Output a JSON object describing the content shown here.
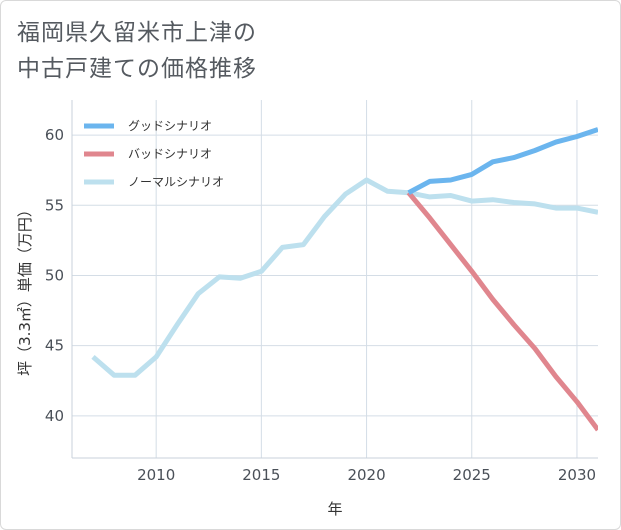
{
  "title_lines": [
    "福岡県久留米市上津の",
    "中古戸建ての価格推移"
  ],
  "chart_data": {
    "type": "line",
    "xlabel": "年",
    "ylabel": "坪（3.3㎡）単価（万円）",
    "xlim": [
      2006,
      2031
    ],
    "ylim": [
      37,
      62.5
    ],
    "xticks": [
      2010,
      2015,
      2020,
      2025,
      2030
    ],
    "yticks": [
      40,
      45,
      50,
      55,
      60
    ],
    "grid": true,
    "legend_position": "top-left",
    "series": [
      {
        "name": "グッドシナリオ",
        "color": "#6bb5ee",
        "x": [
          2022,
          2023,
          2024,
          2025,
          2026,
          2027,
          2028,
          2029,
          2030,
          2031
        ],
        "y": [
          55.9,
          56.7,
          56.8,
          57.2,
          58.1,
          58.4,
          58.9,
          59.5,
          59.9,
          60.4
        ]
      },
      {
        "name": "バッドシナリオ",
        "color": "#e0868e",
        "x": [
          2022,
          2023,
          2024,
          2025,
          2026,
          2027,
          2028,
          2029,
          2030,
          2031
        ],
        "y": [
          55.9,
          54.1,
          52.2,
          50.3,
          48.3,
          46.5,
          44.8,
          42.8,
          41.0,
          39.0
        ]
      },
      {
        "name": "ノーマルシナリオ",
        "color": "#bde0ee",
        "x": [
          2007,
          2008,
          2009,
          2010,
          2011,
          2012,
          2013,
          2014,
          2015,
          2016,
          2017,
          2018,
          2019,
          2020,
          2021,
          2022,
          2023,
          2024,
          2025,
          2026,
          2027,
          2028,
          2029,
          2030,
          2031
        ],
        "y": [
          44.2,
          42.9,
          42.9,
          44.2,
          46.5,
          48.7,
          49.9,
          49.8,
          50.3,
          52.0,
          52.2,
          54.2,
          55.8,
          56.8,
          56.0,
          55.9,
          55.6,
          55.7,
          55.3,
          55.4,
          55.2,
          55.1,
          54.8,
          54.8,
          54.5
        ]
      }
    ]
  }
}
